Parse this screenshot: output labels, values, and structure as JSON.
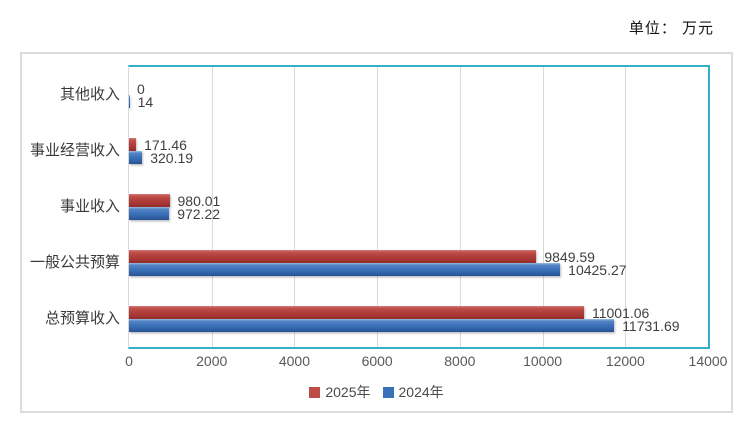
{
  "header": {
    "unit_label": "单位： 万元"
  },
  "chart_data": {
    "type": "bar",
    "orientation": "horizontal",
    "title": "",
    "categories": [
      "其他收入",
      "事业经营收入",
      "事业收入",
      "一般公共预算",
      "总预算收入"
    ],
    "categories_order": "top-to-bottom",
    "series": [
      {
        "name": "2025年",
        "color": "#be4b48",
        "values": [
          0,
          171.46,
          980.01,
          9849.59,
          11001.06
        ],
        "labels": [
          "0",
          "171.46",
          "980.01",
          "9849.59",
          "11001.06"
        ]
      },
      {
        "name": "2024年",
        "color": "#3a72b8",
        "values": [
          14,
          320.19,
          972.22,
          10425.27,
          11731.69
        ],
        "labels": [
          "14",
          "320.19",
          "972.22",
          "10425.27",
          "11731.69"
        ]
      }
    ],
    "xlim": [
      0,
      14000
    ],
    "x_ticks": [
      "0",
      "2000",
      "4000",
      "6000",
      "8000",
      "10000",
      "12000",
      "14000"
    ],
    "grid": true,
    "legend_position": "bottom",
    "plot_border_color": "#35aec8",
    "gridline_color": "#d9d9d9"
  }
}
